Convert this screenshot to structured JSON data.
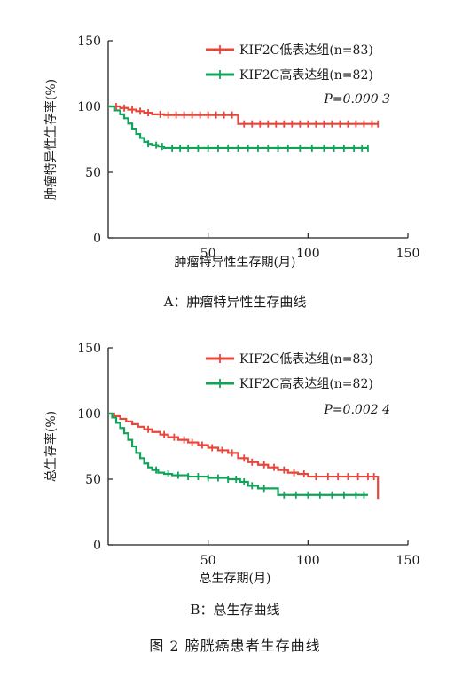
{
  "figure_caption": "图 2 膀胱癌患者生存曲线",
  "colors": {
    "low": "#e8463a",
    "high": "#12a35a",
    "axis": "#222222"
  },
  "chart_data": [
    {
      "type": "line",
      "panel": "A",
      "caption": "A：肿瘤特异性生存曲线",
      "xlabel": "肿瘤特异性生存期(月)",
      "ylabel": "肿瘤特异性生存率(%)",
      "xlim": [
        0,
        150
      ],
      "ylim": [
        0,
        150
      ],
      "xticks": [
        "0",
        "50",
        "100",
        "150"
      ],
      "yticks": [
        "0",
        "50",
        "100",
        "150"
      ],
      "legend_position": "top-right",
      "annotation": "P=0.000 3",
      "series": [
        {
          "name": "KIF2C低表达组(n=83)",
          "color": "#e8463a",
          "x": [
            0,
            6,
            10,
            14,
            18,
            22,
            28,
            65,
            135
          ],
          "y": [
            100,
            98.8,
            97.6,
            96.4,
            95.2,
            94.0,
            93.5,
            86.7,
            86.7
          ],
          "censors": [
            4,
            8,
            12,
            16,
            20,
            26,
            30,
            34,
            38,
            42,
            46,
            50,
            54,
            58,
            62,
            68,
            72,
            76,
            80,
            84,
            88,
            92,
            96,
            100,
            104,
            108,
            112,
            116,
            120,
            124,
            128,
            132,
            135
          ]
        },
        {
          "name": "KIF2C高表达组(n=82)",
          "color": "#12a35a",
          "x": [
            0,
            3,
            6,
            8,
            10,
            12,
            14,
            16,
            18,
            20,
            22,
            25,
            28,
            130
          ],
          "y": [
            100,
            97,
            94,
            91,
            87,
            83,
            79,
            76,
            73,
            71.5,
            70.5,
            69.5,
            68.3,
            68.3
          ],
          "censors": [
            20,
            24,
            27,
            32,
            36,
            40,
            45,
            50,
            55,
            60,
            65,
            70,
            75,
            80,
            85,
            90,
            96,
            102,
            108,
            113,
            118,
            123,
            127,
            130
          ]
        }
      ]
    },
    {
      "type": "line",
      "panel": "B",
      "caption": "B：总生存曲线",
      "xlabel": "总生存期(月)",
      "ylabel": "总生存率(%)",
      "xlim": [
        0,
        150
      ],
      "ylim": [
        0,
        150
      ],
      "xticks": [
        "0",
        "50",
        "100",
        "150"
      ],
      "yticks": [
        "0",
        "50",
        "100",
        "150"
      ],
      "legend_position": "top-right",
      "annotation": "P=0.002 4",
      "series": [
        {
          "name": "KIF2C低表达组(n=83)",
          "color": "#e8463a",
          "x": [
            0,
            3,
            6,
            9,
            12,
            15,
            18,
            22,
            26,
            30,
            35,
            40,
            45,
            50,
            55,
            60,
            65,
            70,
            75,
            80,
            85,
            90,
            95,
            100,
            134,
            135
          ],
          "y": [
            100,
            98,
            96,
            94,
            92,
            90,
            88,
            86,
            84,
            82,
            80,
            78,
            76,
            74,
            72,
            70,
            66,
            63,
            61,
            59,
            57,
            55,
            54,
            52,
            52,
            35
          ],
          "censors": [
            20,
            28,
            33,
            38,
            42,
            47,
            52,
            57,
            62,
            68,
            72,
            78,
            83,
            88,
            93,
            98,
            104,
            110,
            115,
            120,
            125,
            130,
            133
          ]
        },
        {
          "name": "KIF2C高表达组(n=82)",
          "color": "#12a35a",
          "x": [
            0,
            2,
            4,
            6,
            8,
            10,
            12,
            14,
            16,
            18,
            20,
            22,
            25,
            28,
            32,
            40,
            50,
            60,
            66,
            70,
            75,
            85,
            130
          ],
          "y": [
            100,
            97,
            93,
            89,
            85,
            80,
            75,
            70,
            66,
            62,
            59,
            57,
            55,
            54,
            53,
            52,
            51,
            50,
            48,
            45,
            43,
            38,
            38
          ],
          "censors": [
            24,
            30,
            35,
            40,
            45,
            50,
            55,
            60,
            64,
            68,
            72,
            78,
            88,
            94,
            100,
            106,
            112,
            118,
            124,
            128
          ]
        }
      ]
    }
  ]
}
